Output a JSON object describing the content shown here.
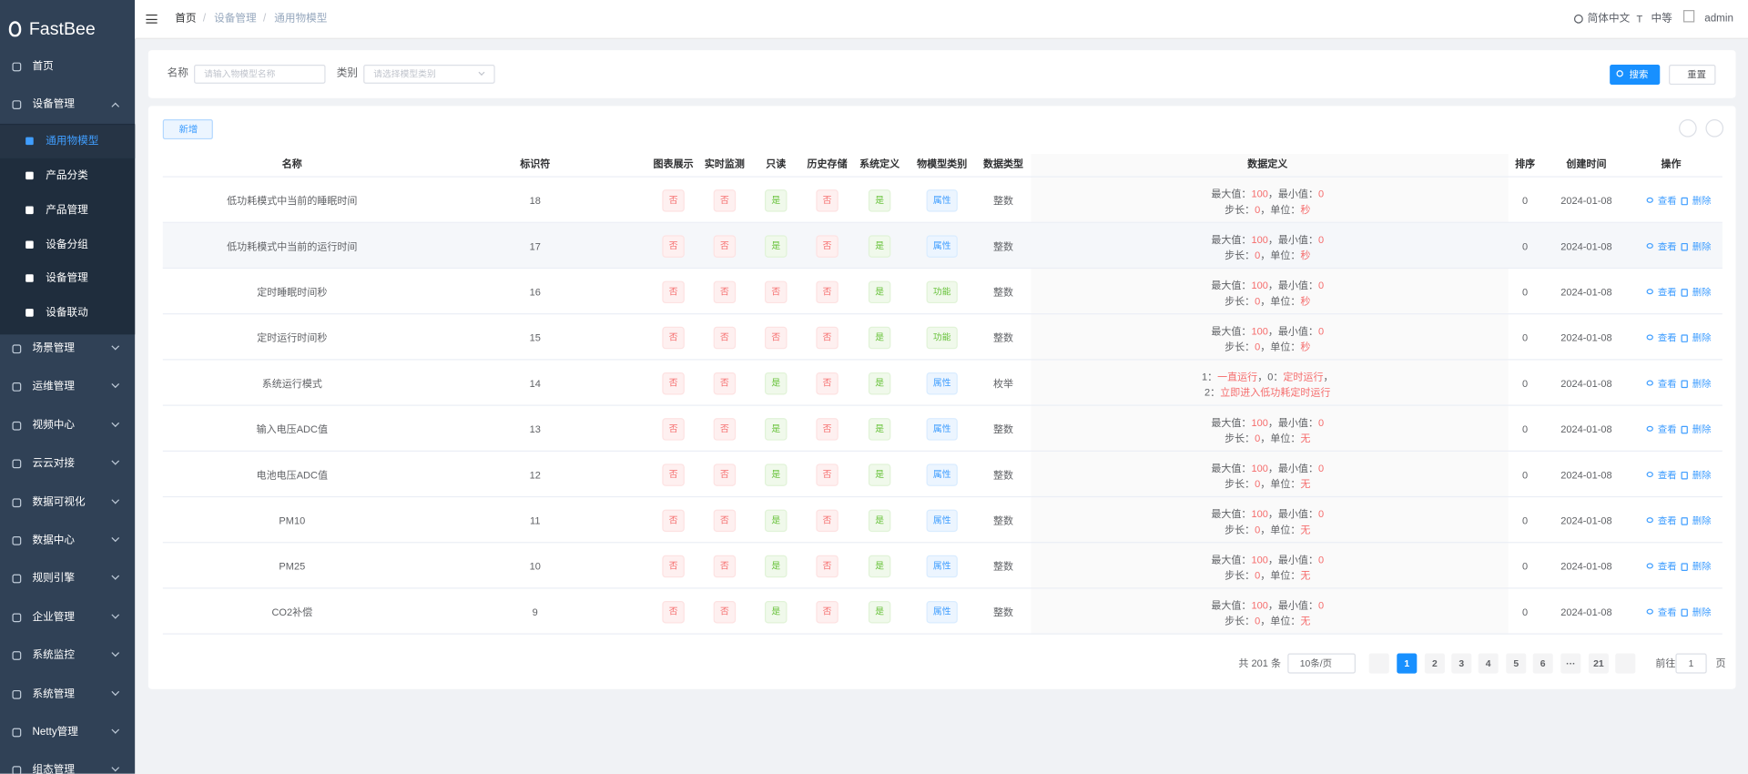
{
  "sidebar": {
    "logo": "FastBee",
    "active_child": 0,
    "menu": [
      {
        "label": "首页"
      },
      {
        "label": "设备管理",
        "children": [
          "通用物模型",
          "产品分类",
          "产品管理",
          "设备分组",
          "设备管理",
          "设备联动"
        ]
      },
      {
        "label": "场景管理"
      },
      {
        "label": "运维管理"
      },
      {
        "label": "视频中心"
      },
      {
        "label": "云云对接"
      },
      {
        "label": "数据可视化"
      },
      {
        "label": "数据中心"
      },
      {
        "label": "规则引擎"
      },
      {
        "label": "企业管理"
      },
      {
        "label": "系统监控"
      },
      {
        "label": "系统管理"
      },
      {
        "label": "Netty管理"
      },
      {
        "label": "组态管理"
      }
    ]
  },
  "header": {
    "breadcrumb": [
      "首页",
      "设备管理",
      "通用物模型"
    ],
    "language": "简体中文",
    "size": "中等",
    "user": "admin"
  },
  "search": {
    "fields": [
      {
        "label": "名称",
        "placeholder": "请输入物模型名称"
      },
      {
        "label": "类别",
        "placeholder": "请选择模型类别"
      }
    ],
    "buttons": [
      "搜索",
      "重置"
    ]
  },
  "toolbar": {
    "add": "新增"
  },
  "table": {
    "columns": [
      "名称",
      "标识符",
      "图表展示",
      "实时监测",
      "只读",
      "历史存储",
      "系统定义",
      "物模型类别",
      "数据类型",
      "数据定义",
      "排序",
      "创建时间",
      "操作"
    ],
    "actions": [
      "查看",
      "删除"
    ],
    "rows": [
      {
        "name": "低功耗模式中当前的睡眠时间",
        "identifier": 18,
        "tags": [
          {
            "label": "否",
            "type": "danger"
          },
          {
            "label": "否",
            "type": "danger"
          },
          {
            "label": "是",
            "type": "success"
          },
          {
            "label": "否",
            "type": "danger"
          },
          {
            "label": "是",
            "type": "success"
          }
        ],
        "category": {
          "label": "属性",
          "type": "primary"
        },
        "data_type": "整数",
        "definition": [
          [
            "最大值：",
            "100",
            "，最小值：",
            "0"
          ],
          [
            "步长：",
            "0",
            "，单位：",
            "秒"
          ]
        ],
        "order": 0,
        "created": "2024-01-08"
      },
      {
        "name": "低功耗模式中当前的运行时间",
        "identifier": 17,
        "tags": [
          {
            "label": "否",
            "type": "danger"
          },
          {
            "label": "否",
            "type": "danger"
          },
          {
            "label": "是",
            "type": "success"
          },
          {
            "label": "否",
            "type": "danger"
          },
          {
            "label": "是",
            "type": "success"
          }
        ],
        "category": {
          "label": "属性",
          "type": "primary"
        },
        "data_type": "整数",
        "definition": [
          [
            "最大值：",
            "100",
            "，最小值：",
            "0"
          ],
          [
            "步长：",
            "0",
            "，单位：",
            "秒"
          ]
        ],
        "order": 0,
        "created": "2024-01-08"
      },
      {
        "name": "定时睡眠时间秒",
        "identifier": 16,
        "tags": [
          {
            "label": "否",
            "type": "danger"
          },
          {
            "label": "否",
            "type": "danger"
          },
          {
            "label": "否",
            "type": "danger"
          },
          {
            "label": "否",
            "type": "danger"
          },
          {
            "label": "是",
            "type": "success"
          }
        ],
        "category": {
          "label": "功能",
          "type": "success"
        },
        "data_type": "整数",
        "definition": [
          [
            "最大值：",
            "100",
            "，最小值：",
            "0"
          ],
          [
            "步长：",
            "0",
            "，单位：",
            "秒"
          ]
        ],
        "order": 0,
        "created": "2024-01-08"
      },
      {
        "name": "定时运行时间秒",
        "identifier": 15,
        "tags": [
          {
            "label": "否",
            "type": "danger"
          },
          {
            "label": "否",
            "type": "danger"
          },
          {
            "label": "否",
            "type": "danger"
          },
          {
            "label": "否",
            "type": "danger"
          },
          {
            "label": "是",
            "type": "success"
          }
        ],
        "category": {
          "label": "功能",
          "type": "success"
        },
        "data_type": "整数",
        "definition": [
          [
            "最大值：",
            "100",
            "，最小值：",
            "0"
          ],
          [
            "步长：",
            "0",
            "，单位：",
            "秒"
          ]
        ],
        "order": 0,
        "created": "2024-01-08"
      },
      {
        "name": "系统运行模式",
        "identifier": 14,
        "tags": [
          {
            "label": "否",
            "type": "danger"
          },
          {
            "label": "否",
            "type": "danger"
          },
          {
            "label": "是",
            "type": "success"
          },
          {
            "label": "否",
            "type": "danger"
          },
          {
            "label": "是",
            "type": "success"
          }
        ],
        "category": {
          "label": "属性",
          "type": "primary"
        },
        "data_type": "枚举",
        "definition": [
          [
            "1：",
            "一直运行",
            "，0：",
            "定时运行",
            "，"
          ],
          [
            "2：",
            "立即进入低功耗定时运行"
          ]
        ],
        "order": 0,
        "created": "2024-01-08"
      },
      {
        "name": "输入电压ADC值",
        "identifier": 13,
        "tags": [
          {
            "label": "否",
            "type": "danger"
          },
          {
            "label": "否",
            "type": "danger"
          },
          {
            "label": "是",
            "type": "success"
          },
          {
            "label": "否",
            "type": "danger"
          },
          {
            "label": "是",
            "type": "success"
          }
        ],
        "category": {
          "label": "属性",
          "type": "primary"
        },
        "data_type": "整数",
        "definition": [
          [
            "最大值：",
            "100",
            "，最小值：",
            "0"
          ],
          [
            "步长：",
            "0",
            "，单位：",
            "无"
          ]
        ],
        "order": 0,
        "created": "2024-01-08"
      },
      {
        "name": "电池电压ADC值",
        "identifier": 12,
        "tags": [
          {
            "label": "否",
            "type": "danger"
          },
          {
            "label": "否",
            "type": "danger"
          },
          {
            "label": "是",
            "type": "success"
          },
          {
            "label": "否",
            "type": "danger"
          },
          {
            "label": "是",
            "type": "success"
          }
        ],
        "category": {
          "label": "属性",
          "type": "primary"
        },
        "data_type": "整数",
        "definition": [
          [
            "最大值：",
            "100",
            "，最小值：",
            "0"
          ],
          [
            "步长：",
            "0",
            "，单位：",
            "无"
          ]
        ],
        "order": 0,
        "created": "2024-01-08"
      },
      {
        "name": "PM10",
        "identifier": 11,
        "tags": [
          {
            "label": "否",
            "type": "danger"
          },
          {
            "label": "否",
            "type": "danger"
          },
          {
            "label": "是",
            "type": "success"
          },
          {
            "label": "否",
            "type": "danger"
          },
          {
            "label": "是",
            "type": "success"
          }
        ],
        "category": {
          "label": "属性",
          "type": "primary"
        },
        "data_type": "整数",
        "definition": [
          [
            "最大值：",
            "100",
            "，最小值：",
            "0"
          ],
          [
            "步长：",
            "0",
            "，单位：",
            "无"
          ]
        ],
        "order": 0,
        "created": "2024-01-08"
      },
      {
        "name": "PM25",
        "identifier": 10,
        "tags": [
          {
            "label": "否",
            "type": "danger"
          },
          {
            "label": "否",
            "type": "danger"
          },
          {
            "label": "是",
            "type": "success"
          },
          {
            "label": "否",
            "type": "danger"
          },
          {
            "label": "是",
            "type": "success"
          }
        ],
        "category": {
          "label": "属性",
          "type": "primary"
        },
        "data_type": "整数",
        "definition": [
          [
            "最大值：",
            "100",
            "，最小值：",
            "0"
          ],
          [
            "步长：",
            "0",
            "，单位：",
            "无"
          ]
        ],
        "order": 0,
        "created": "2024-01-08"
      },
      {
        "name": "CO2补偿",
        "identifier": 9,
        "tags": [
          {
            "label": "否",
            "type": "danger"
          },
          {
            "label": "否",
            "type": "danger"
          },
          {
            "label": "是",
            "type": "success"
          },
          {
            "label": "否",
            "type": "danger"
          },
          {
            "label": "是",
            "type": "success"
          }
        ],
        "category": {
          "label": "属性",
          "type": "primary"
        },
        "data_type": "整数",
        "definition": [
          [
            "最大值：",
            "100",
            "，最小值：",
            "0"
          ],
          [
            "步长：",
            "0",
            "，单位：",
            "无"
          ]
        ],
        "order": 0,
        "created": "2024-01-08"
      }
    ]
  },
  "pagination": {
    "total": "共 201 条",
    "page_size": "10条/页",
    "pages": [
      "1",
      "2",
      "3",
      "4",
      "5",
      "6",
      "···",
      "21"
    ],
    "current": 0,
    "goto": "前往",
    "goto_value": "1",
    "goto_suffix": "页"
  }
}
